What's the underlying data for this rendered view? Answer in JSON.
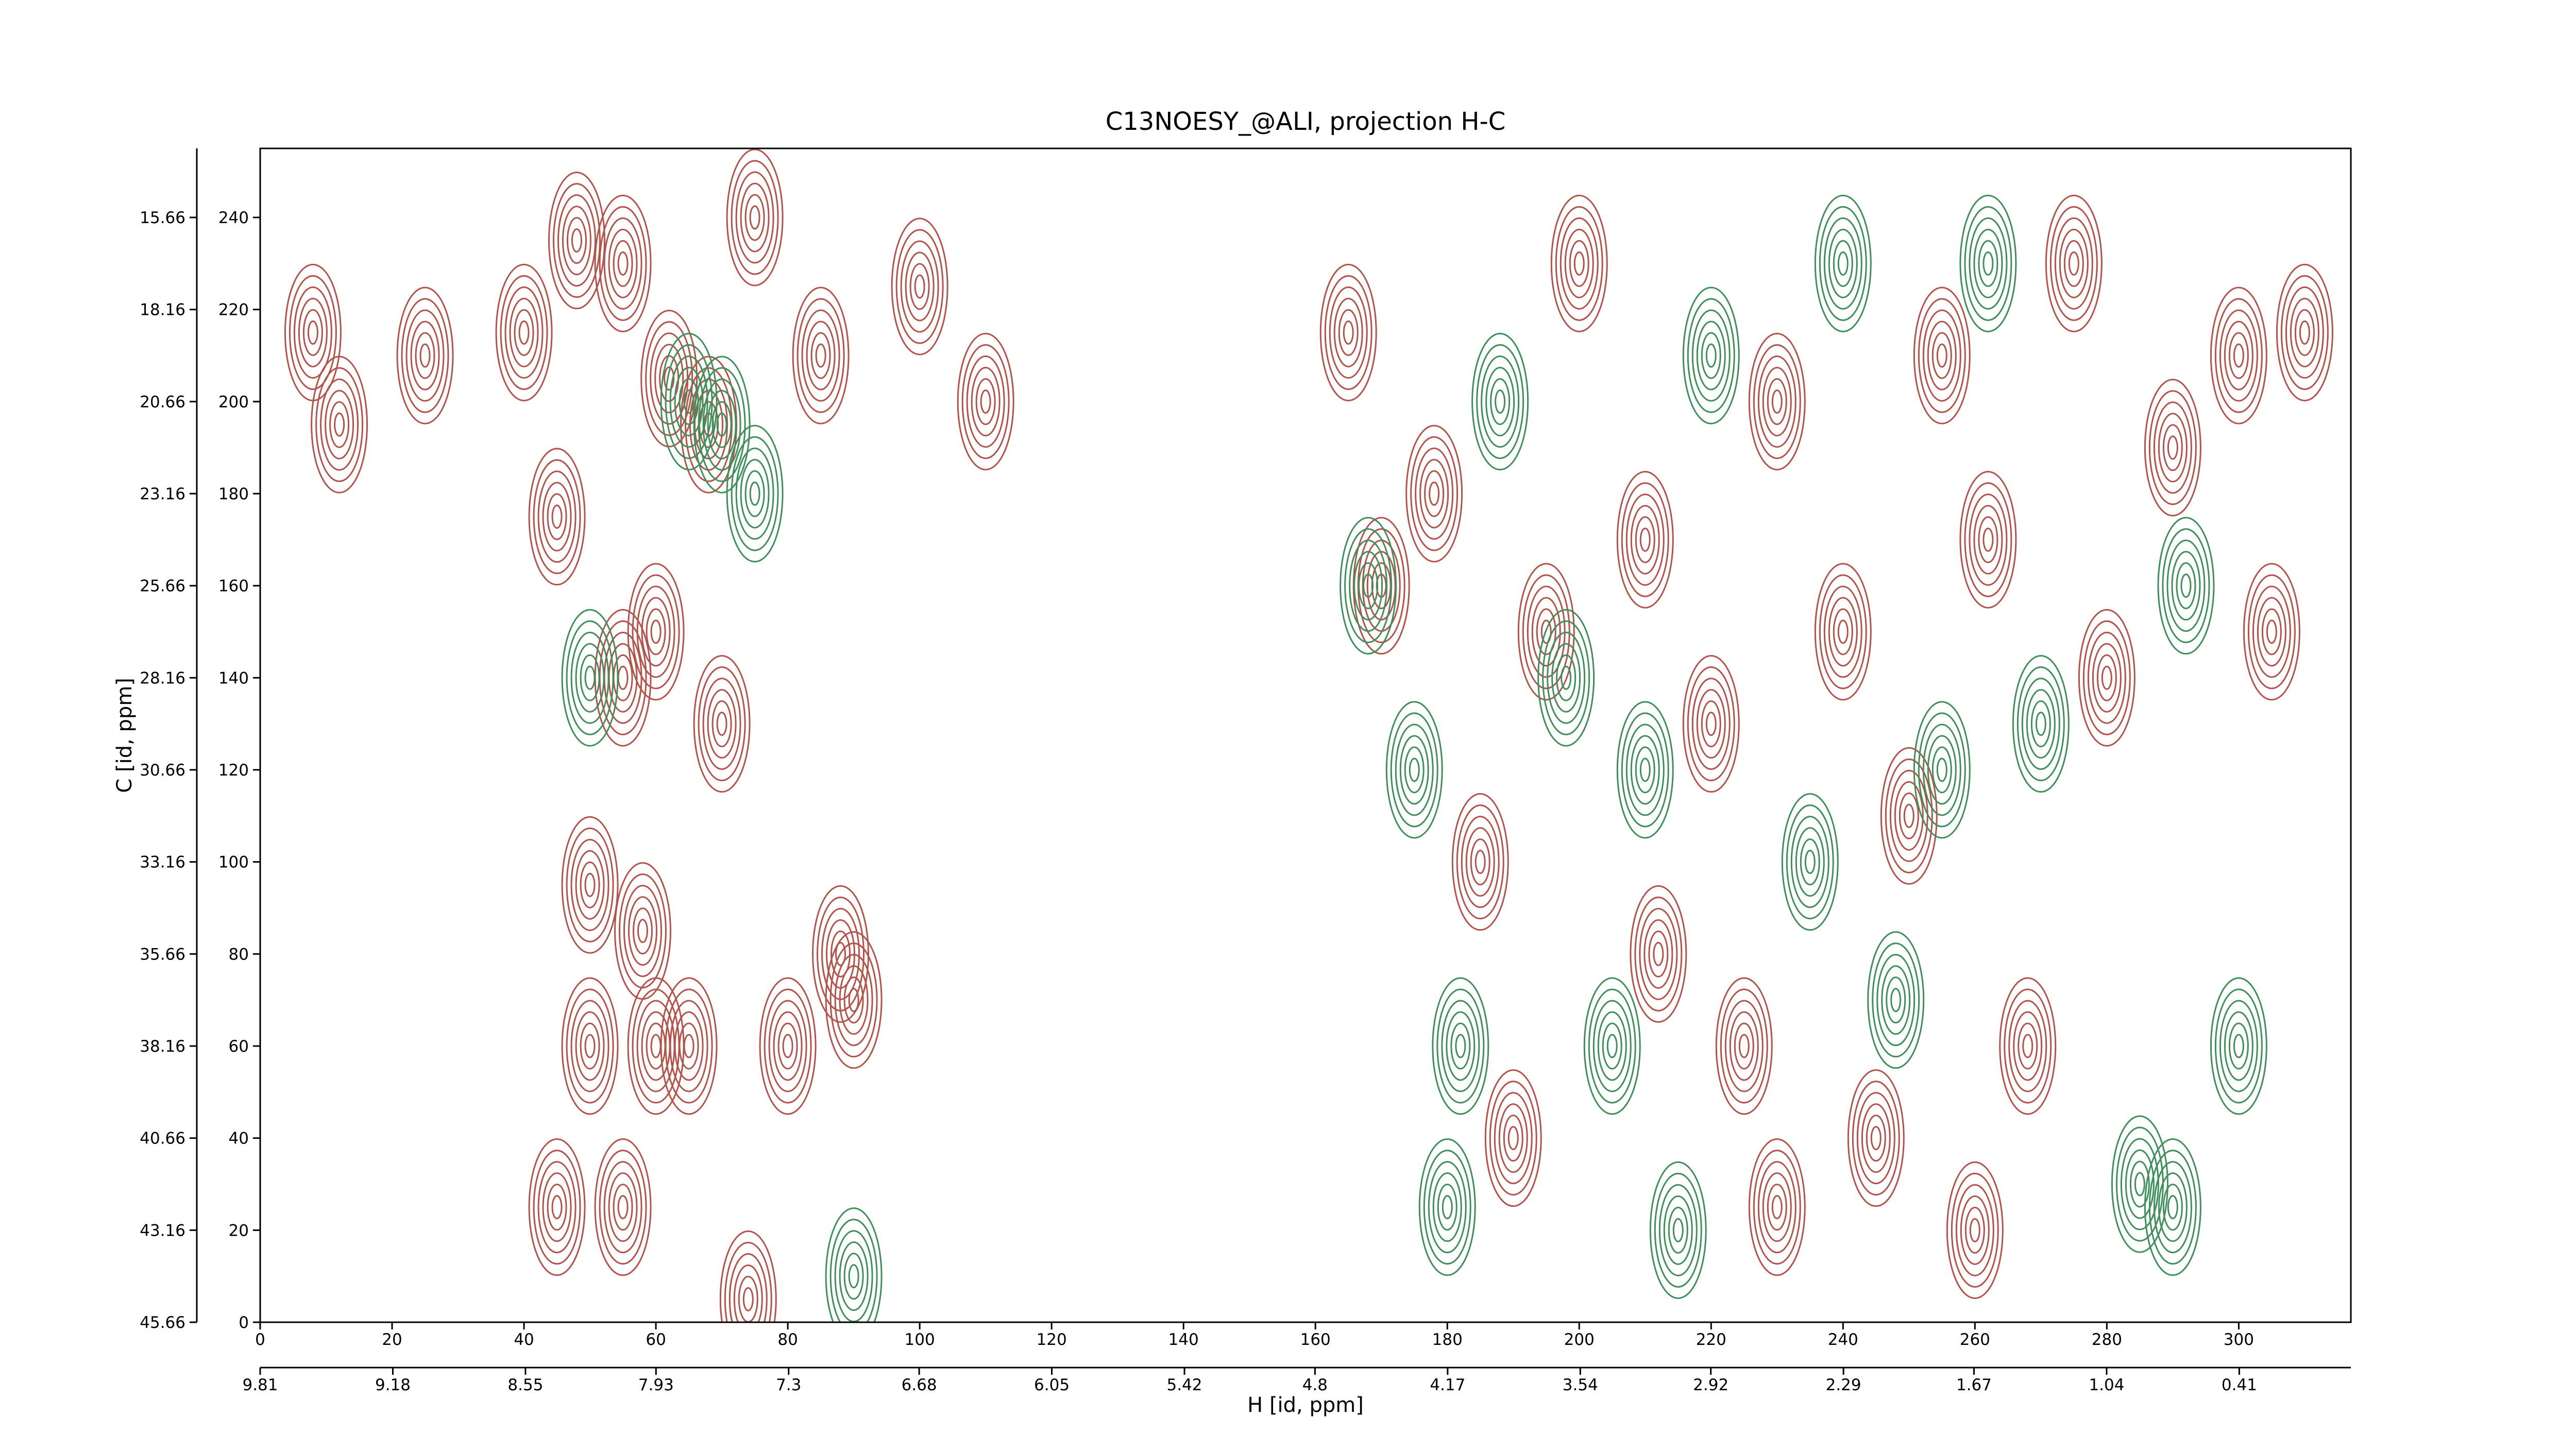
{
  "chart_data": {
    "type": "contour",
    "title": "C13NOESY_@ALI, projection H-C",
    "xlabel": "H [id, ppm]",
    "ylabel": "C [id, ppm]",
    "xlim": [
      0,
      317
    ],
    "ylim": [
      0,
      255
    ],
    "xticks": [
      0,
      20,
      40,
      60,
      80,
      100,
      120,
      140,
      160,
      180,
      200,
      220,
      240,
      260,
      280,
      300
    ],
    "yticks": [
      0,
      20,
      40,
      60,
      80,
      100,
      120,
      140,
      160,
      180,
      200,
      220,
      240
    ],
    "x2lim": [
      9.81,
      -0.12
    ],
    "x2ticks": [
      9.81,
      9.18,
      8.55,
      7.93,
      7.3,
      6.68,
      6.05,
      5.42,
      4.8,
      4.17,
      3.54,
      2.92,
      2.29,
      1.67,
      1.04,
      0.41
    ],
    "y2lim": [
      45.66,
      13.785
    ],
    "y2ticks": [
      45.66,
      43.16,
      40.66,
      38.16,
      35.66,
      33.16,
      30.66,
      28.16,
      25.66,
      23.16,
      20.66,
      18.16,
      15.66
    ],
    "series": [
      {
        "color": "#b5524a",
        "x": [
          8,
          12,
          25,
          40,
          48,
          55,
          62,
          68,
          45,
          60,
          70,
          55,
          50,
          58,
          90,
          88,
          80,
          50,
          60,
          65,
          45,
          55,
          74,
          100,
          110,
          75,
          85,
          165,
          170,
          178,
          185,
          190,
          200,
          210,
          212,
          220,
          225,
          230,
          240,
          250,
          255,
          262,
          268,
          275,
          280,
          290,
          300,
          305,
          310,
          245,
          260,
          195,
          230
        ],
        "y": [
          215,
          195,
          210,
          215,
          235,
          230,
          205,
          195,
          175,
          150,
          130,
          140,
          95,
          85,
          70,
          80,
          60,
          60,
          60,
          60,
          25,
          25,
          5,
          225,
          200,
          240,
          210,
          215,
          160,
          180,
          100,
          40,
          230,
          170,
          80,
          130,
          60,
          25,
          150,
          110,
          210,
          170,
          60,
          230,
          140,
          190,
          210,
          150,
          215,
          40,
          20,
          150,
          200
        ]
      },
      {
        "color": "#3f8f5a",
        "x": [
          65,
          70,
          75,
          50,
          90,
          168,
          175,
          182,
          188,
          198,
          210,
          215,
          220,
          235,
          240,
          248,
          255,
          270,
          285,
          290,
          292,
          300,
          262,
          180,
          205
        ],
        "y": [
          200,
          195,
          180,
          140,
          10,
          160,
          120,
          60,
          200,
          140,
          120,
          20,
          210,
          100,
          230,
          70,
          120,
          130,
          30,
          25,
          160,
          60,
          230,
          25,
          60
        ]
      }
    ]
  }
}
